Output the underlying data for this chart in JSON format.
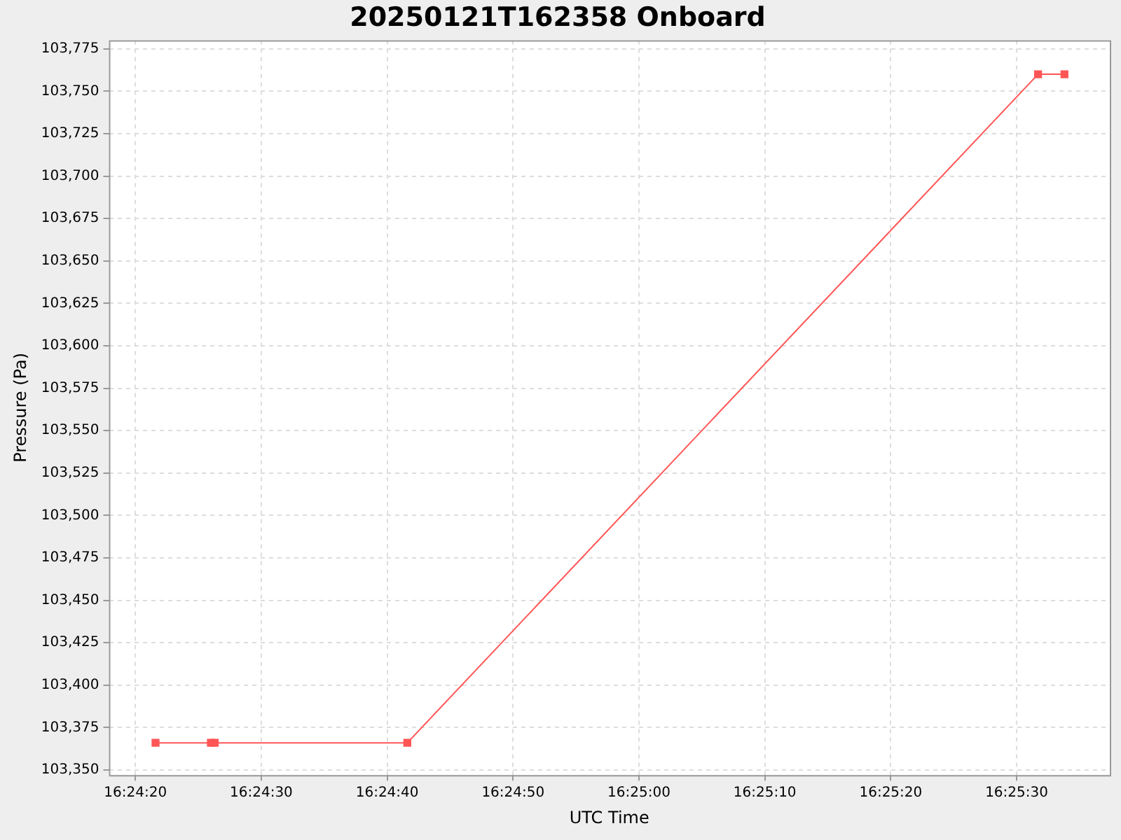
{
  "chart_data": {
    "type": "line",
    "title": "20250121T162358 Onboard",
    "xlabel": "UTC Time",
    "ylabel": "Pressure (Pa)",
    "x": [
      "2025-01-21T16:24:21.6",
      "2025-01-21T16:24:26.0",
      "2025-01-21T16:24:26.3",
      "2025-01-21T16:24:41.6",
      "2025-01-21T16:25:31.7",
      "2025-01-21T16:25:33.8"
    ],
    "series": [
      {
        "color": "#ff5555",
        "values": [
          103366,
          103366,
          103366,
          103366,
          103760,
          103760
        ]
      }
    ],
    "xlim": [
      "2025-01-21T16:24:17.9",
      "2025-01-21T16:25:37.4"
    ],
    "xticks": [
      {
        "value": "2025-01-21T16:24:20",
        "label": "16:24:20"
      },
      {
        "value": "2025-01-21T16:24:30",
        "label": "16:24:30"
      },
      {
        "value": "2025-01-21T16:24:40",
        "label": "16:24:40"
      },
      {
        "value": "2025-01-21T16:24:50",
        "label": "16:24:50"
      },
      {
        "value": "2025-01-21T16:25:00",
        "label": "16:25:00"
      },
      {
        "value": "2025-01-21T16:25:10",
        "label": "16:25:10"
      },
      {
        "value": "2025-01-21T16:25:20",
        "label": "16:25:20"
      },
      {
        "value": "2025-01-21T16:25:30",
        "label": "16:25:30"
      }
    ],
    "ylim": [
      103347,
      103780
    ],
    "yticks": [
      {
        "value": 103350,
        "label": "103,350"
      },
      {
        "value": 103375,
        "label": "103,375"
      },
      {
        "value": 103400,
        "label": "103,400"
      },
      {
        "value": 103425,
        "label": "103,425"
      },
      {
        "value": 103450,
        "label": "103,450"
      },
      {
        "value": 103475,
        "label": "103,475"
      },
      {
        "value": 103500,
        "label": "103,500"
      },
      {
        "value": 103525,
        "label": "103,525"
      },
      {
        "value": 103550,
        "label": "103,550"
      },
      {
        "value": 103575,
        "label": "103,575"
      },
      {
        "value": 103600,
        "label": "103,600"
      },
      {
        "value": 103625,
        "label": "103,625"
      },
      {
        "value": 103650,
        "label": "103,650"
      },
      {
        "value": 103675,
        "label": "103,675"
      },
      {
        "value": 103700,
        "label": "103,700"
      },
      {
        "value": 103725,
        "label": "103,725"
      },
      {
        "value": 103750,
        "label": "103,750"
      },
      {
        "value": 103775,
        "label": "103,775"
      }
    ],
    "grid": true,
    "marker": "square",
    "line_style": "solid",
    "legend": false
  }
}
